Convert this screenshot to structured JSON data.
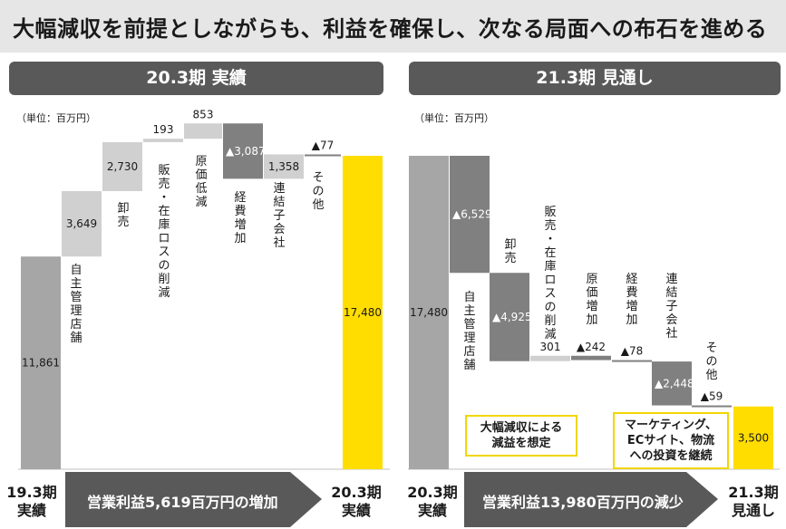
{
  "headline": "大幅減収を前提としながらも、利益を確保し、次なる局面への布石を進める",
  "panels": [
    {
      "header": "20.3期 実績",
      "unit": "（単位：百万円）"
    },
    {
      "header": "21.3期 見通し",
      "unit": "（単位：百万円）"
    }
  ],
  "bottom": {
    "left_start": [
      "19.3期",
      "実績"
    ],
    "left_arrow": "営業利益5,619百万円の増加",
    "left_end": [
      "20.3期",
      "実績"
    ],
    "right_start": [
      "20.3期",
      "実績"
    ],
    "right_arrow": "営業利益13,980百万円の減少",
    "right_end": [
      "21.3期",
      "見通し"
    ]
  },
  "notes": {
    "left": [
      "大幅減収による",
      "減益を想定"
    ],
    "right": [
      "マーケティング、",
      "ECサイト、物流",
      "への投資を継続"
    ]
  },
  "colors": {
    "total_gray": "#a6a6a6",
    "increase": "#d0d0d0",
    "decrease": "#808080",
    "highlight": "#ffdd00",
    "arrow": "#595959"
  },
  "chart_data": [
    {
      "type": "waterfall",
      "title": "20.3期 実績",
      "unit": "百万円",
      "ylim": [
        0,
        20000
      ],
      "bars": [
        {
          "label": "",
          "kind": "total",
          "value": 11861,
          "display": "11,861"
        },
        {
          "label": "自主管理店舗",
          "kind": "increase",
          "value": 3649,
          "display": "3,649"
        },
        {
          "label": "卸売",
          "kind": "increase",
          "value": 2730,
          "display": "2,730"
        },
        {
          "label": "販売・在庫ロスの削減",
          "kind": "increase",
          "value": 193,
          "display": "193"
        },
        {
          "label": "原価低減",
          "kind": "increase",
          "value": 853,
          "display": "853"
        },
        {
          "label": "経費増加",
          "kind": "decrease",
          "value": -3087,
          "display": "▲3,087"
        },
        {
          "label": "連結子会社",
          "kind": "increase",
          "value": 1358,
          "display": "1,358"
        },
        {
          "label": "その他",
          "kind": "decrease",
          "value": -77,
          "display": "▲77"
        },
        {
          "label": "",
          "kind": "total",
          "value": 17480,
          "display": "17,480"
        }
      ]
    },
    {
      "type": "waterfall",
      "title": "21.3期 見通し",
      "unit": "百万円",
      "ylim": [
        0,
        20000
      ],
      "bars": [
        {
          "label": "",
          "kind": "total",
          "value": 17480,
          "display": "17,480"
        },
        {
          "label": "自主管理店舗",
          "kind": "decrease",
          "value": -6529,
          "display": "▲6,529"
        },
        {
          "label": "卸売",
          "kind": "decrease",
          "value": -4925,
          "display": "▲4,925"
        },
        {
          "label": "販売・在庫ロスの削減",
          "kind": "increase",
          "value": 301,
          "display": "301"
        },
        {
          "label": "原価増加",
          "kind": "decrease",
          "value": -242,
          "display": "▲242"
        },
        {
          "label": "経費増加",
          "kind": "decrease",
          "value": -78,
          "display": "▲78"
        },
        {
          "label": "連結子会社",
          "kind": "decrease",
          "value": -2448,
          "display": "▲2,448"
        },
        {
          "label": "その他",
          "kind": "decrease",
          "value": -59,
          "display": "▲59"
        },
        {
          "label": "",
          "kind": "total",
          "value": 3500,
          "display": "3,500"
        }
      ]
    }
  ]
}
